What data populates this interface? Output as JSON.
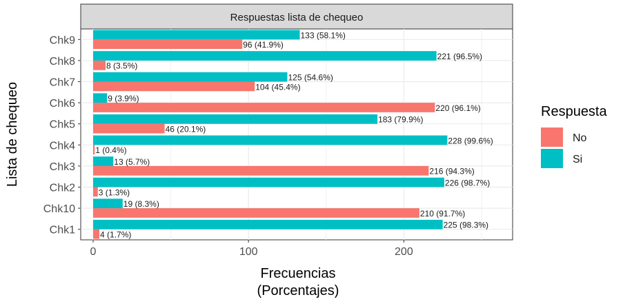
{
  "chart_data": {
    "type": "bar",
    "orientation": "horizontal",
    "title": "Respuestas lista de chequeo",
    "xlabel": [
      "Frecuencias",
      "(Porcentajes)"
    ],
    "ylabel": "Lista de chequeo",
    "xlim": [
      -8,
      270
    ],
    "xticks": [
      0,
      100,
      200
    ],
    "grid": true,
    "legend_position": "right",
    "legend_title": "Respuesta",
    "categories": [
      "Chk1",
      "Chk10",
      "Chk2",
      "Chk3",
      "Chk4",
      "Chk5",
      "Chk6",
      "Chk7",
      "Chk8",
      "Chk9"
    ],
    "series": [
      {
        "name": "No",
        "color": "#F8766D",
        "values": [
          4,
          210,
          3,
          216,
          1,
          46,
          220,
          104,
          8,
          96
        ],
        "labels": [
          "4 (1.7%)",
          "210 (91.7%)",
          "3 (1.3%)",
          "216 (94.3%)",
          "1 (0.4%)",
          "46 (20.1%)",
          "220 (96.1%)",
          "104 (45.4%)",
          "8 (3.5%)",
          "96 (41.9%)"
        ]
      },
      {
        "name": "Si",
        "color": "#00BFC4",
        "values": [
          225,
          19,
          226,
          13,
          228,
          183,
          9,
          125,
          221,
          133
        ],
        "labels": [
          "225 (98.3%)",
          "19 (8.3%)",
          "226 (98.7%)",
          "13 (5.7%)",
          "228 (99.6%)",
          "183 (79.9%)",
          "9 (3.9%)",
          "125 (54.6%)",
          "221 (96.5%)",
          "133 (58.1%)"
        ]
      }
    ]
  }
}
